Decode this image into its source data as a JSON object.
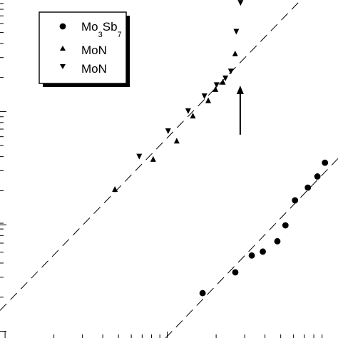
{
  "chart_data": {
    "type": "scatter",
    "axes": {
      "x_scale": "log",
      "y_scale": "log",
      "tick_labels_visible": false,
      "grid": false
    },
    "legend": {
      "placement": "top-left",
      "entries": [
        {
          "text": "Mo",
          "sub1": "3",
          "mid": "Sb",
          "sub2": "7",
          "marker": "circle"
        },
        {
          "text": "MoN",
          "marker": "triangle-up"
        },
        {
          "text": "MoN",
          "marker": "triangle-down"
        }
      ]
    },
    "series": [
      {
        "marker": "circle",
        "points": [
          [
            0.5994,
            0.13277
          ],
          [
            0.6962,
            0.19426
          ],
          [
            0.7449,
            0.24409
          ],
          [
            0.7776,
            0.25564
          ],
          [
            0.8206,
            0.28622
          ],
          [
            0.8445,
            0.33333
          ],
          [
            0.8728,
            0.40727
          ],
          [
            0.9108,
            0.44486
          ],
          [
            0.9391,
            0.47794
          ],
          [
            0.9614,
            0.51855
          ]
        ]
      },
      {
        "marker": "triangle-up",
        "points": [
          [
            0.34,
            0.43985
          ],
          [
            0.4532,
            0.52882
          ],
          [
            0.5229,
            0.58271
          ],
          [
            0.5707,
            0.65689
          ],
          [
            0.6161,
            0.70226
          ],
          [
            0.6375,
            0.73559
          ],
          [
            0.6593,
            0.75689
          ],
          [
            0.6957,
            0.84085
          ]
        ]
      },
      {
        "marker": "triangle-down",
        "points": [
          [
            0.412,
            0.53759
          ],
          [
            0.4974,
            0.61278
          ],
          [
            0.5566,
            0.67218
          ],
          [
            0.6048,
            0.71629
          ],
          [
            0.6408,
            0.74925
          ],
          [
            0.6669,
            0.7693
          ],
          [
            0.683,
            0.78947
          ],
          [
            0.6991,
            0.90727
          ],
          [
            0.7116,
            0.99247
          ]
        ]
      }
    ],
    "fit_lines": [
      {
        "x": [
          0.0,
          0.89
        ],
        "y": [
          0.0814,
          1.0
        ]
      },
      {
        "x": [
          0.49,
          1.0
        ],
        "y": [
          0.0,
          0.531
        ]
      }
    ],
    "annotations": [
      {
        "type": "arrow",
        "direction": "up",
        "x": 0.7107,
        "y_from": 0.6015,
        "y_to": 0.7469
      }
    ]
  }
}
